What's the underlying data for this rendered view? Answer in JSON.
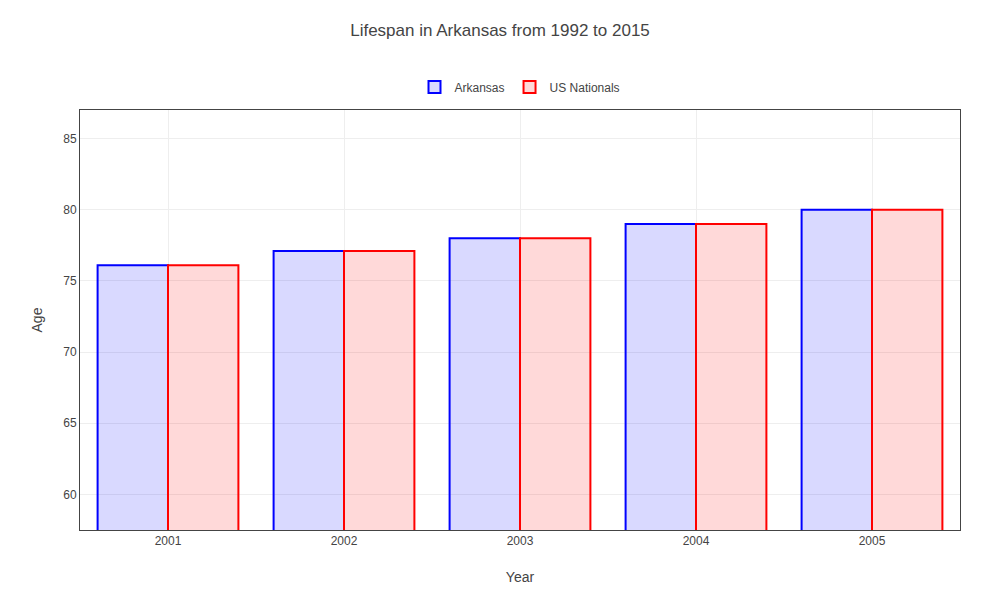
{
  "chart_data": {
    "type": "bar",
    "title": "Lifespan in Arkansas from 1992 to 2015",
    "xlabel": "Year",
    "ylabel": "Age",
    "categories": [
      "2001",
      "2002",
      "2003",
      "2004",
      "2005"
    ],
    "series": [
      {
        "name": "Arkansas",
        "color": "#0000ff",
        "values": [
          76.1,
          77.1,
          78.0,
          79.0,
          80.0
        ]
      },
      {
        "name": "US Nationals",
        "color": "#ff0000",
        "values": [
          76.1,
          77.1,
          78.0,
          79.0,
          80.0
        ]
      }
    ],
    "ylim": [
      57.5,
      87
    ],
    "yticks": [
      60,
      65,
      70,
      75,
      80,
      85
    ],
    "grid": true,
    "legend": "upper center"
  }
}
